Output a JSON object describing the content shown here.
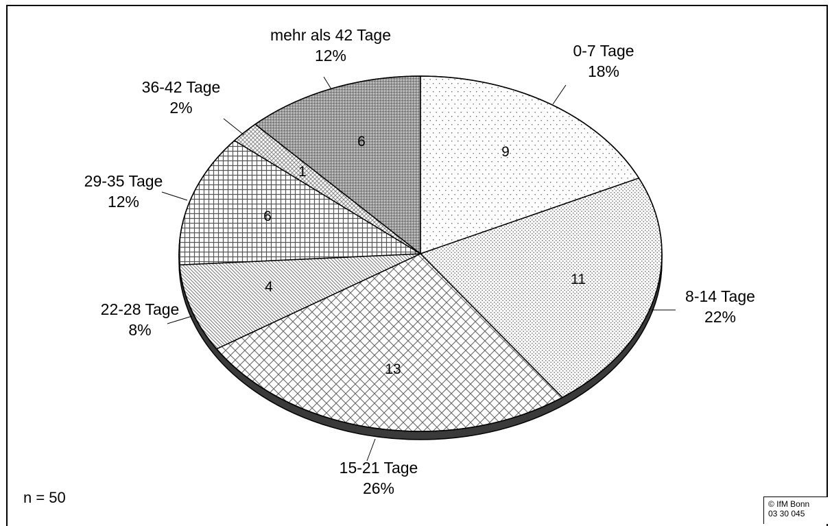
{
  "chart_data": {
    "type": "pie",
    "title": "",
    "slices": [
      {
        "label": "0-7 Tage",
        "value": 9,
        "percent": "18%"
      },
      {
        "label": "8-14 Tage",
        "value": 11,
        "percent": "22%"
      },
      {
        "label": "15-21 Tage",
        "value": 13,
        "percent": "26%"
      },
      {
        "label": "22-28 Tage",
        "value": 4,
        "percent": "8%"
      },
      {
        "label": "29-35 Tage",
        "value": 6,
        "percent": "12%"
      },
      {
        "label": "36-42 Tage",
        "value": 1,
        "percent": "2%"
      },
      {
        "label": "mehr als 42 Tage",
        "value": 6,
        "percent": "12%"
      }
    ],
    "total": 50,
    "style": "3d-pie with hatch patterns"
  },
  "note": "n = 50",
  "copyright": {
    "line1": "© IfM Bonn",
    "line2": "03 30 045"
  }
}
